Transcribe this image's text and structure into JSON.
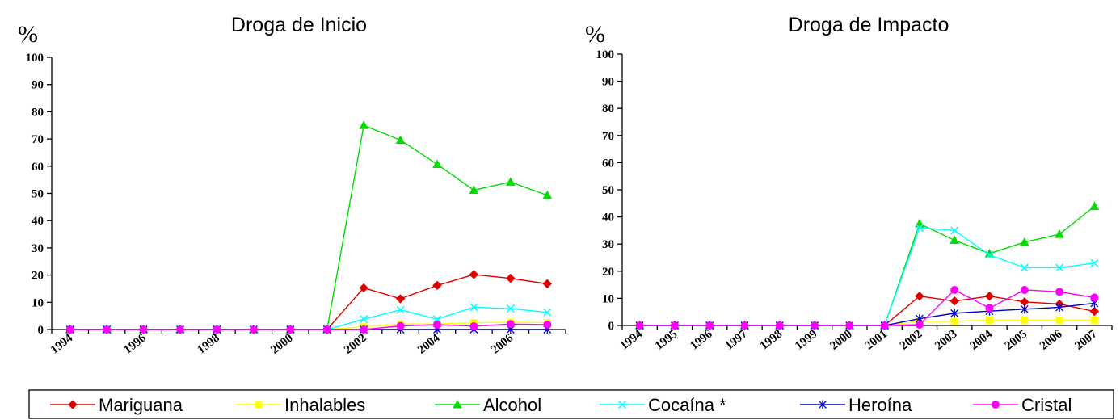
{
  "chart_data": [
    {
      "type": "line",
      "title": "Droga de Inicio",
      "ylabel": "%",
      "ylim": [
        0,
        100
      ],
      "yticks": [
        "0",
        "10",
        "20",
        "30",
        "40",
        "50",
        "60",
        "70",
        "80",
        "90",
        "100"
      ],
      "x": [
        1994,
        1995,
        1996,
        1997,
        1998,
        1999,
        2000,
        2001,
        2002,
        2003,
        2004,
        2005,
        2006,
        2007
      ],
      "xticklabels": [
        "1994",
        "1996",
        "1998",
        "2000",
        "2002",
        "2004",
        "2006"
      ],
      "series": [
        {
          "name": "Mariguana",
          "color": "#e00000",
          "marker": "diamond",
          "values": [
            0,
            0,
            0,
            0,
            0,
            0,
            0,
            0,
            15.3,
            11.3,
            16.2,
            20.2,
            18.8,
            16.8
          ]
        },
        {
          "name": "Inhalables",
          "color": "#ffff00",
          "marker": "square",
          "values": [
            0,
            0,
            0,
            0,
            0,
            0,
            0,
            0,
            1,
            2,
            2,
            2.5,
            2.7,
            2.5
          ]
        },
        {
          "name": "Alcohol",
          "color": "#00dd00",
          "marker": "triangle",
          "values": [
            0,
            0,
            0,
            0,
            0,
            0,
            0,
            0,
            75,
            69.6,
            60.7,
            51.2,
            54.2,
            49.3
          ]
        },
        {
          "name": "Cocaína *",
          "color": "#00ffff",
          "marker": "x",
          "values": [
            0,
            0,
            0,
            0,
            0,
            0,
            0,
            0,
            3.8,
            7.2,
            3.8,
            8.2,
            7.7,
            6.3
          ]
        },
        {
          "name": "Heroína",
          "color": "#0000cc",
          "marker": "star",
          "values": [
            0,
            0,
            0,
            0,
            0,
            0,
            0,
            0,
            0,
            0,
            0,
            0,
            0,
            0
          ]
        },
        {
          "name": "Cristal",
          "color": "#ff00ff",
          "marker": "circle",
          "values": [
            0,
            0,
            0,
            0,
            0,
            0,
            0,
            0,
            0,
            1.3,
            1.8,
            1.2,
            2,
            1.8
          ]
        }
      ]
    },
    {
      "type": "line",
      "title": "Droga de Impacto",
      "ylabel": "%",
      "ylim": [
        0,
        100
      ],
      "yticks": [
        "0",
        "10",
        "20",
        "30",
        "40",
        "50",
        "60",
        "70",
        "80",
        "90",
        "100"
      ],
      "x": [
        1994,
        1995,
        1996,
        1997,
        1998,
        1999,
        2000,
        2001,
        2002,
        2003,
        2004,
        2005,
        2006,
        2007
      ],
      "xticklabels": [
        "1994",
        "1995",
        "1996",
        "1997",
        "1998",
        "1999",
        "2000",
        "2001",
        "2002",
        "2003",
        "2004",
        "2005",
        "2006",
        "2007"
      ],
      "series": [
        {
          "name": "Mariguana",
          "color": "#e00000",
          "marker": "diamond",
          "values": [
            0,
            0,
            0,
            0,
            0,
            0,
            0,
            0,
            10.8,
            9,
            10.8,
            8.7,
            7.9,
            5.2
          ]
        },
        {
          "name": "Inhalables",
          "color": "#ffff00",
          "marker": "square",
          "values": [
            0,
            0,
            0,
            0,
            0,
            0,
            0,
            0,
            1.5,
            1.5,
            2,
            2,
            2,
            2
          ]
        },
        {
          "name": "Alcohol",
          "color": "#00dd00",
          "marker": "triangle",
          "values": [
            0,
            0,
            0,
            0,
            0,
            0,
            0,
            0,
            37.5,
            31.4,
            26.5,
            30.7,
            33.6,
            43.9
          ]
        },
        {
          "name": "Cocaína *",
          "color": "#00ffff",
          "marker": "x",
          "values": [
            0,
            0,
            0,
            0,
            0,
            0,
            0,
            0,
            36,
            35,
            26,
            21.3,
            21.3,
            23
          ]
        },
        {
          "name": "Heroína",
          "color": "#0000cc",
          "marker": "star",
          "values": [
            0,
            0,
            0,
            0,
            0,
            0,
            0,
            0,
            2.5,
            4.5,
            5.3,
            6,
            6.7,
            8.2
          ]
        },
        {
          "name": "Cristal",
          "color": "#ff00ff",
          "marker": "circle",
          "values": [
            0,
            0,
            0,
            0,
            0,
            0,
            0,
            0,
            0.3,
            13.1,
            6.4,
            13.1,
            12.4,
            10.3
          ]
        }
      ]
    }
  ],
  "legend": [
    {
      "label": "Mariguana",
      "color": "#e00000",
      "marker": "diamond"
    },
    {
      "label": "Inhalables",
      "color": "#ffff00",
      "marker": "square"
    },
    {
      "label": "Alcohol",
      "color": "#00dd00",
      "marker": "triangle"
    },
    {
      "label": "Cocaína *",
      "color": "#00ffff",
      "marker": "x"
    },
    {
      "label": "Heroína",
      "color": "#0000cc",
      "marker": "star"
    },
    {
      "label": "Cristal",
      "color": "#ff00ff",
      "marker": "circle"
    }
  ]
}
